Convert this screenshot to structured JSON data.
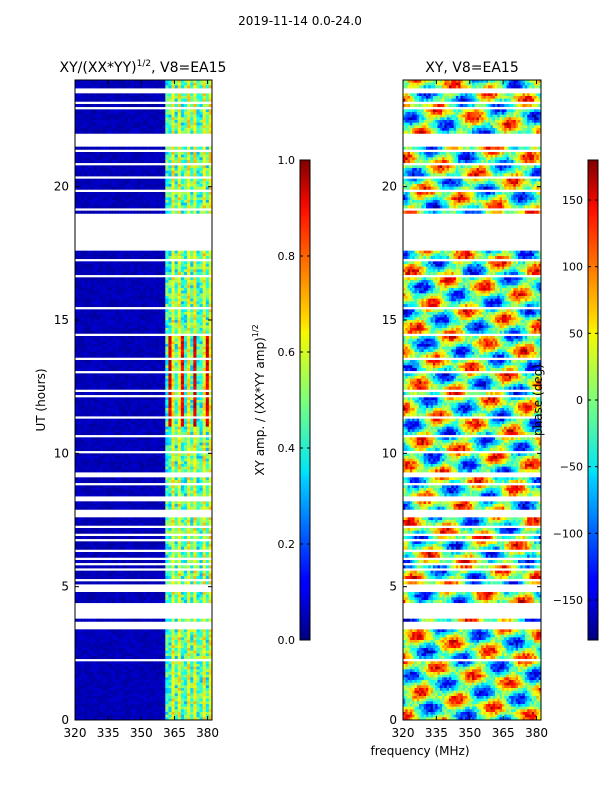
{
  "page_title": "2019-11-14 0.0-24.0",
  "chart_data": [
    {
      "type": "heatmap",
      "id": "amp",
      "title_base": "XY/(XX*YY)",
      "title_sup": "1/2",
      "title_tail": ", V8=EA15",
      "ylabel": "UT (hours)",
      "xlabel": "",
      "xlim": [
        320,
        382
      ],
      "ylim": [
        0,
        24
      ],
      "xticks": [
        320,
        335,
        350,
        365,
        380
      ],
      "yticks": [
        0,
        5,
        10,
        15,
        20
      ],
      "gaps_hours": [
        [
          17.6,
          19.0
        ],
        [
          21.5,
          22.0
        ],
        [
          3.8,
          4.4
        ],
        [
          7.6,
          7.9
        ]
      ],
      "colorbar": {
        "label_base": "XY amp. / (XX*YY amp)",
        "label_sup": "1/2",
        "range": [
          0.0,
          1.0
        ],
        "ticks": [
          0.0,
          0.2,
          0.4,
          0.6,
          0.8,
          1.0
        ],
        "tick_labels": [
          "0.0",
          "0.2",
          "0.4",
          "0.6",
          "0.8",
          "1.0"
        ]
      }
    },
    {
      "type": "heatmap",
      "id": "phase",
      "title": "XY, V8=EA15",
      "ylabel": "",
      "xlabel": "frequency (MHz)",
      "xlim": [
        320,
        382
      ],
      "ylim": [
        0,
        24
      ],
      "xticks": [
        320,
        335,
        350,
        365,
        380
      ],
      "yticks": [
        0,
        5,
        10,
        15,
        20
      ],
      "colorbar": {
        "label": "phase (deg)",
        "range": [
          -180,
          180
        ],
        "ticks": [
          -150,
          -100,
          -50,
          0,
          50,
          100,
          150
        ],
        "tick_labels": [
          "−150",
          "−100",
          "−50",
          "0",
          "50",
          "100",
          "150"
        ]
      }
    }
  ]
}
